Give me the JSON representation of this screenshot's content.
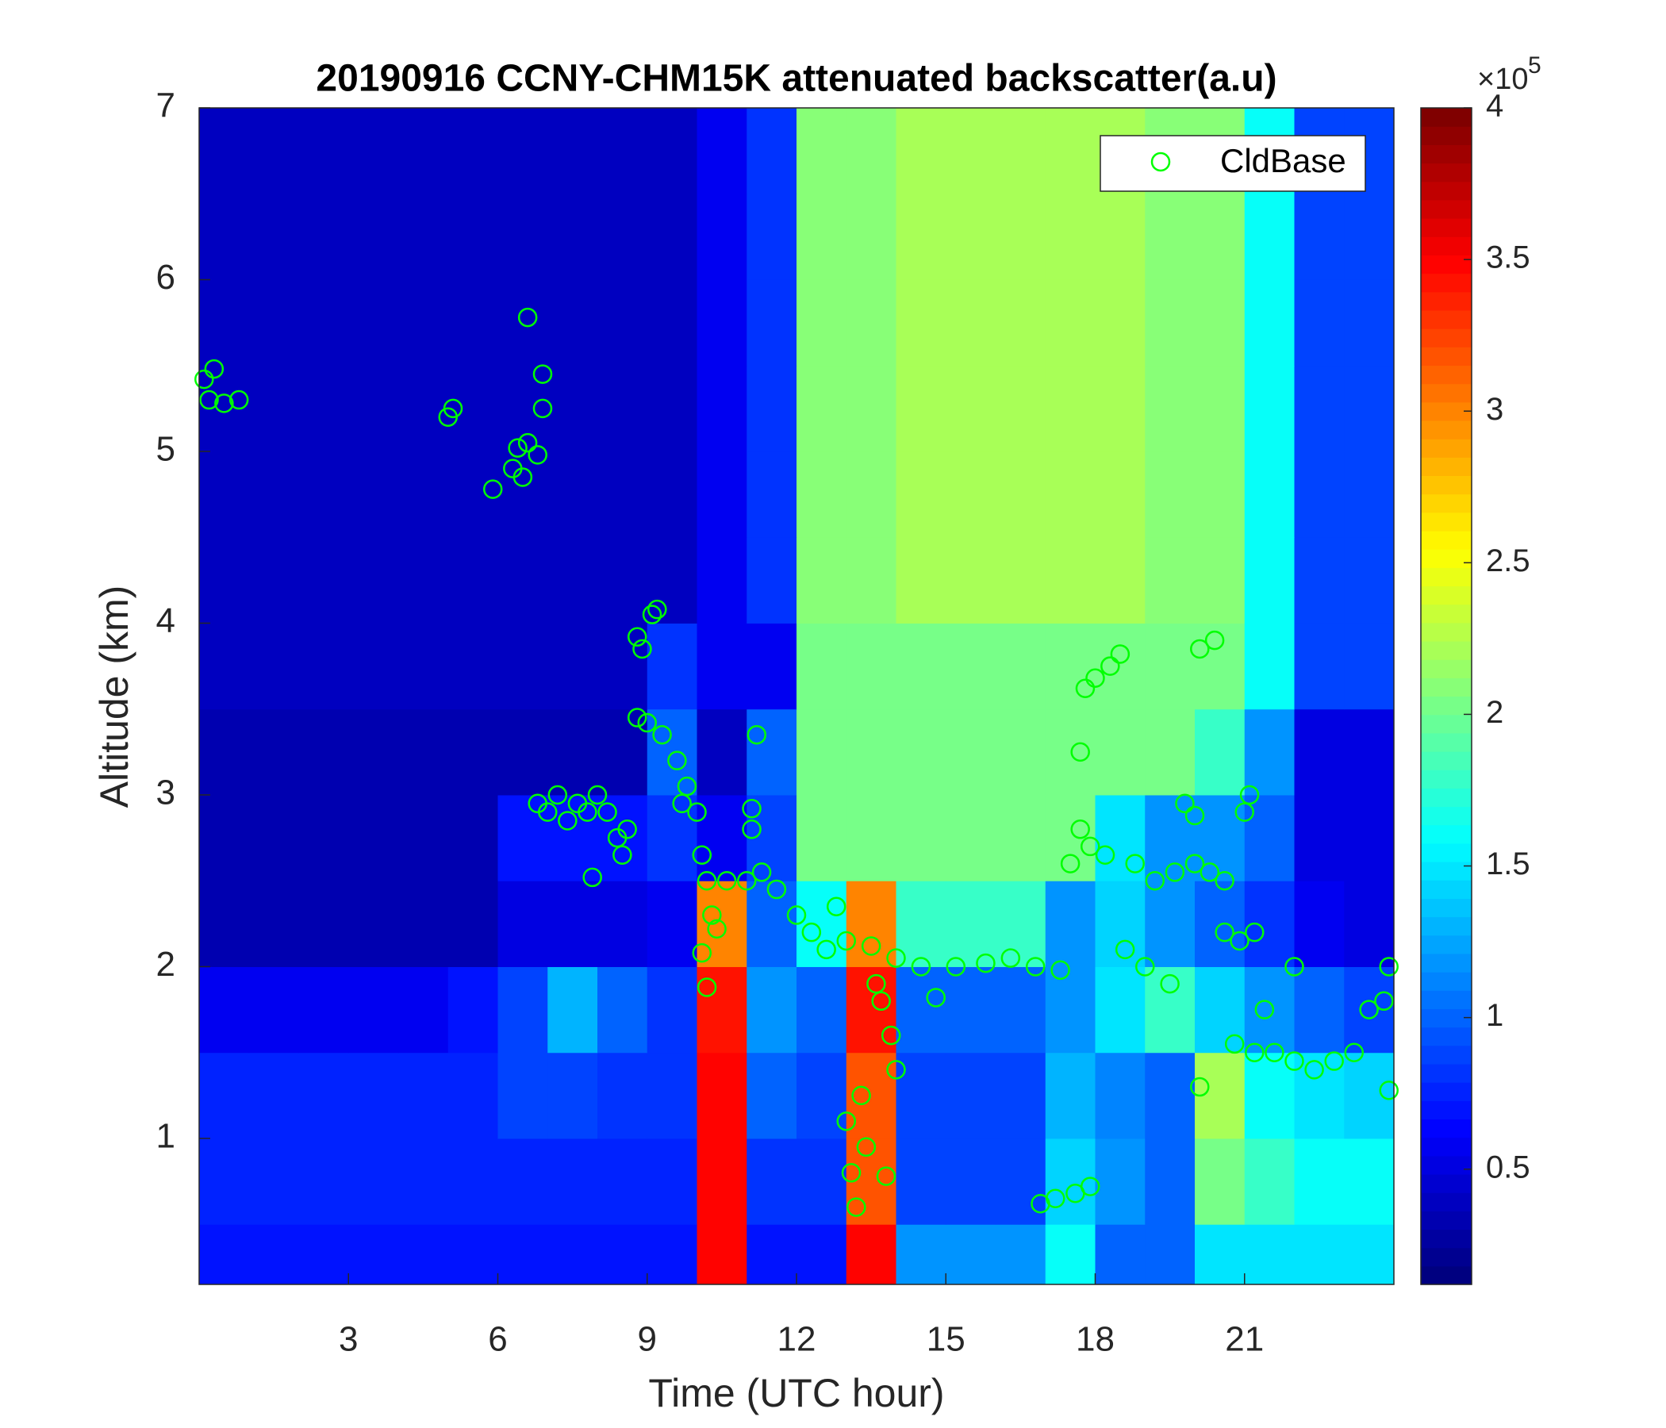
{
  "chart_data": {
    "type": "heatmap",
    "title": "20190916 CCNY-CHM15K attenuated backscatter(a.u)",
    "x_label": "Time (UTC hour)",
    "y_label": "Altitude (km)",
    "xlim": [
      0,
      24
    ],
    "ylim": [
      0.15,
      7
    ],
    "xticks": [
      3,
      6,
      9,
      12,
      15,
      18,
      21
    ],
    "yticks": [
      1,
      2,
      3,
      4,
      5,
      6,
      7
    ],
    "x_edges": [
      0,
      1,
      2,
      3,
      4,
      5,
      6,
      7,
      8,
      9,
      10,
      11,
      12,
      13,
      14,
      15,
      16,
      17,
      18,
      19,
      20,
      21,
      22,
      23,
      24
    ],
    "y_edges": [
      0.15,
      0.5,
      1,
      1.5,
      2,
      2.5,
      3,
      3.5,
      4,
      4.5,
      5,
      5.5,
      6,
      6.5,
      7
    ],
    "z": [
      [
        0.7,
        0.7,
        0.7,
        0.7,
        0.7,
        0.7,
        0.7,
        0.7,
        0.7,
        0.7,
        3.5,
        0.7,
        0.7,
        3.5,
        1.2,
        1.2,
        1.2,
        1.6,
        1.0,
        1.0,
        1.5,
        1.5,
        1.5,
        1.5
      ],
      [
        0.75,
        0.75,
        0.75,
        0.75,
        0.75,
        0.75,
        0.75,
        0.75,
        0.75,
        0.75,
        3.5,
        0.8,
        0.8,
        3.2,
        0.9,
        0.9,
        0.9,
        1.4,
        1.2,
        1.0,
        2.0,
        1.8,
        1.6,
        1.6
      ],
      [
        0.75,
        0.75,
        0.75,
        0.75,
        0.75,
        0.75,
        0.9,
        0.9,
        0.8,
        0.8,
        3.5,
        1.0,
        0.9,
        3.2,
        0.9,
        0.9,
        0.9,
        1.3,
        1.1,
        1.0,
        2.2,
        1.6,
        1.5,
        1.4
      ],
      [
        0.6,
        0.6,
        0.6,
        0.6,
        0.6,
        0.7,
        0.9,
        1.3,
        1.0,
        0.8,
        3.4,
        1.2,
        1.0,
        3.4,
        1.0,
        1.0,
        1.0,
        1.2,
        1.5,
        1.8,
        1.4,
        1.2,
        1.0,
        0.9
      ],
      [
        0.35,
        0.35,
        0.35,
        0.35,
        0.35,
        0.35,
        0.5,
        0.5,
        0.5,
        0.6,
        3.0,
        1.0,
        1.6,
        3.0,
        1.8,
        1.8,
        1.8,
        1.2,
        1.4,
        1.2,
        1.0,
        0.8,
        0.6,
        0.5
      ],
      [
        0.35,
        0.35,
        0.35,
        0.35,
        0.35,
        0.35,
        0.7,
        0.7,
        0.7,
        0.8,
        0.6,
        0.9,
        2.0,
        2.0,
        2.0,
        2.0,
        2.0,
        2.0,
        1.5,
        1.2,
        1.2,
        1.0,
        0.5,
        0.5
      ],
      [
        0.35,
        0.35,
        0.35,
        0.35,
        0.35,
        0.35,
        0.35,
        0.35,
        0.35,
        1.0,
        0.4,
        1.0,
        2.0,
        2.0,
        2.0,
        2.0,
        2.0,
        2.0,
        2.0,
        2.0,
        1.8,
        1.2,
        0.5,
        0.5
      ],
      [
        0.4,
        0.4,
        0.4,
        0.4,
        0.4,
        0.4,
        0.4,
        0.4,
        0.4,
        0.8,
        0.6,
        0.6,
        2.0,
        2.0,
        2.0,
        2.0,
        2.0,
        2.0,
        2.0,
        2.0,
        2.0,
        1.6,
        0.9,
        0.9
      ],
      [
        0.4,
        0.4,
        0.4,
        0.4,
        0.4,
        0.4,
        0.4,
        0.4,
        0.4,
        0.4,
        0.6,
        0.8,
        2.1,
        2.1,
        2.2,
        2.2,
        2.2,
        2.2,
        2.2,
        2.1,
        2.1,
        1.6,
        0.9,
        0.9
      ],
      [
        0.4,
        0.4,
        0.4,
        0.4,
        0.4,
        0.4,
        0.4,
        0.4,
        0.4,
        0.4,
        0.6,
        0.8,
        2.1,
        2.1,
        2.2,
        2.2,
        2.2,
        2.2,
        2.2,
        2.1,
        2.1,
        1.6,
        0.9,
        0.9
      ],
      [
        0.4,
        0.4,
        0.4,
        0.4,
        0.4,
        0.4,
        0.4,
        0.4,
        0.4,
        0.4,
        0.6,
        0.8,
        2.1,
        2.1,
        2.2,
        2.2,
        2.2,
        2.2,
        2.2,
        2.1,
        2.1,
        1.6,
        0.9,
        0.9
      ],
      [
        0.4,
        0.4,
        0.4,
        0.4,
        0.4,
        0.4,
        0.4,
        0.4,
        0.4,
        0.4,
        0.6,
        0.8,
        2.1,
        2.1,
        2.2,
        2.2,
        2.2,
        2.2,
        2.2,
        2.1,
        2.1,
        1.6,
        0.9,
        0.9
      ],
      [
        0.4,
        0.4,
        0.4,
        0.4,
        0.4,
        0.4,
        0.4,
        0.4,
        0.4,
        0.4,
        0.6,
        0.8,
        2.1,
        2.1,
        2.2,
        2.2,
        2.2,
        2.2,
        2.2,
        2.1,
        2.1,
        1.6,
        0.9,
        0.9
      ],
      [
        0.4,
        0.4,
        0.4,
        0.4,
        0.4,
        0.4,
        0.4,
        0.4,
        0.4,
        0.4,
        0.6,
        0.8,
        2.1,
        2.1,
        2.2,
        2.2,
        2.2,
        2.2,
        2.2,
        2.1,
        2.1,
        1.6,
        0.9,
        0.9
      ]
    ],
    "colormap": "jet",
    "clim": [
      0.12,
      4
    ],
    "cticks": [
      0.5,
      1,
      1.5,
      2,
      2.5,
      3,
      3.5,
      4
    ],
    "cbar_multiplier": "×10",
    "cbar_exponent": "5",
    "legend": "northeast",
    "series": [
      {
        "name": "CldBase",
        "type": "scatter",
        "color": "#00ff00",
        "x": [
          0.1,
          0.2,
          0.5,
          0.8,
          0.3,
          5.0,
          5.1,
          5.9,
          6.3,
          6.4,
          6.5,
          6.6,
          6.8,
          6.6,
          6.9,
          6.9,
          6.8,
          7.0,
          7.2,
          7.4,
          7.6,
          7.8,
          8.0,
          8.2,
          8.4,
          8.6,
          8.5,
          7.9,
          8.8,
          8.9,
          9.1,
          9.2,
          8.8,
          9.0,
          9.3,
          9.6,
          9.8,
          10.0,
          9.7,
          10.1,
          10.2,
          10.3,
          10.4,
          10.6,
          11.0,
          11.3,
          11.2,
          11.1,
          11.1,
          10.1,
          10.2,
          11.6,
          12.0,
          12.3,
          12.6,
          12.8,
          13.0,
          13.5,
          14.0,
          14.5,
          14.8,
          15.2,
          15.8,
          16.3,
          16.8,
          17.3,
          13.0,
          13.1,
          13.2,
          13.3,
          13.4,
          13.7,
          13.9,
          14.0,
          13.8,
          13.6,
          16.9,
          17.2,
          17.6,
          17.9,
          17.5,
          17.7,
          17.9,
          18.2,
          17.7,
          17.8,
          18.0,
          18.3,
          18.5,
          18.8,
          19.2,
          19.6,
          20.0,
          20.3,
          20.6,
          19.8,
          20.0,
          18.6,
          19.0,
          19.5,
          20.1,
          20.4,
          20.6,
          20.9,
          21.1,
          21.0,
          21.2,
          20.8,
          21.2,
          21.6,
          22.0,
          22.4,
          22.8,
          23.2,
          23.5,
          23.8,
          23.9,
          23.9,
          22.0,
          21.4,
          20.1
        ],
        "y": [
          5.42,
          5.3,
          5.28,
          5.3,
          5.48,
          5.2,
          5.25,
          4.78,
          4.9,
          5.02,
          4.85,
          5.05,
          4.98,
          5.78,
          5.45,
          5.25,
          2.95,
          2.9,
          3.0,
          2.85,
          2.95,
          2.9,
          3.0,
          2.9,
          2.75,
          2.8,
          2.65,
          2.52,
          3.92,
          3.85,
          4.05,
          4.08,
          3.45,
          3.42,
          3.35,
          3.2,
          3.05,
          2.9,
          2.95,
          2.65,
          2.5,
          2.3,
          2.22,
          2.5,
          2.5,
          2.55,
          3.35,
          2.92,
          2.8,
          2.08,
          1.88,
          2.45,
          2.3,
          2.2,
          2.1,
          2.35,
          2.15,
          2.12,
          2.05,
          2.0,
          1.82,
          2.0,
          2.02,
          2.05,
          2.0,
          1.98,
          1.1,
          0.8,
          0.6,
          1.25,
          0.95,
          1.8,
          1.6,
          1.4,
          0.78,
          1.9,
          0.62,
          0.65,
          0.68,
          0.72,
          2.6,
          2.8,
          2.7,
          2.65,
          3.25,
          3.62,
          3.68,
          3.75,
          3.82,
          2.6,
          2.5,
          2.55,
          2.6,
          2.55,
          2.5,
          2.95,
          2.88,
          2.1,
          2.0,
          1.9,
          3.85,
          3.9,
          2.2,
          2.15,
          3.0,
          2.9,
          2.2,
          1.55,
          1.5,
          1.5,
          1.45,
          1.4,
          1.45,
          1.5,
          1.75,
          1.8,
          2.0,
          1.28,
          2.0,
          1.75,
          1.3
        ]
      }
    ]
  }
}
